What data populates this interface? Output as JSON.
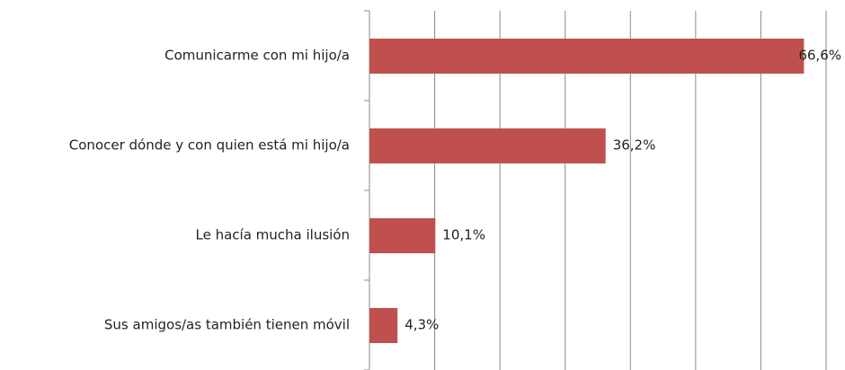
{
  "chart_data": {
    "type": "bar",
    "orientation": "horizontal",
    "categories": [
      "Comunicarme con mi hijo/a",
      "Conocer dónde y con quien está mi hijo/a",
      "Le hacía mucha ilusión",
      "Sus amigos/as también tienen móvil"
    ],
    "values": [
      66.6,
      36.2,
      10.1,
      4.3
    ],
    "value_labels": [
      "66,6%",
      "36,2%",
      "10,1%",
      "4,3%"
    ],
    "color": "#c0504d",
    "xlim": [
      0,
      70
    ],
    "xticks": [
      0,
      10,
      20,
      30,
      40,
      50,
      60,
      70
    ],
    "grid": true
  }
}
